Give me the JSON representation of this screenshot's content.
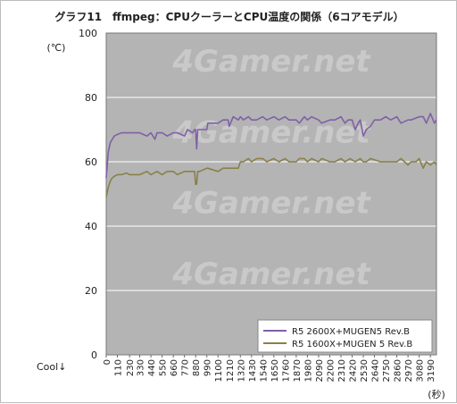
{
  "chart_data": {
    "type": "line",
    "title": "グラフ11　ffmpeg：CPUクーラーとCPU温度の関係（6コアモデル）",
    "ylabel": "(℃)",
    "xlabel": "(秒)",
    "corner_label": "Cool↓",
    "watermark": "4Gamer.net",
    "ylim": [
      0,
      100
    ],
    "yticks": [
      0,
      20,
      40,
      60,
      80,
      100
    ],
    "xlim": [
      0,
      3250
    ],
    "xticks": [
      0,
      110,
      230,
      330,
      440,
      550,
      660,
      770,
      880,
      990,
      1100,
      1210,
      1320,
      1430,
      1540,
      1650,
      1760,
      1870,
      1980,
      2090,
      2200,
      2310,
      2420,
      2530,
      2640,
      2750,
      2860,
      2970,
      3080,
      3190
    ],
    "grid": true,
    "legend_position": "bottom-right",
    "colors": {
      "plot_bg": "#b4b4b4",
      "grid": "#ffffff",
      "series1": "#8060a8",
      "series2": "#8a8048"
    },
    "series": [
      {
        "name": "R5 2600X+MUGEN5 Rev.B",
        "color": "#8060a8",
        "x": [
          0,
          20,
          40,
          60,
          80,
          110,
          150,
          200,
          230,
          330,
          400,
          440,
          480,
          500,
          550,
          600,
          660,
          700,
          770,
          800,
          850,
          870,
          880,
          890,
          900,
          920,
          990,
          1000,
          1100,
          1150,
          1200,
          1210,
          1250,
          1300,
          1320,
          1350,
          1400,
          1430,
          1480,
          1540,
          1580,
          1650,
          1700,
          1760,
          1800,
          1870,
          1900,
          1950,
          1980,
          2020,
          2090,
          2120,
          2200,
          2250,
          2310,
          2350,
          2380,
          2420,
          2450,
          2480,
          2500,
          2530,
          2560,
          2600,
          2640,
          2700,
          2750,
          2800,
          2860,
          2900,
          2970,
          3000,
          3080,
          3120,
          3150,
          3190,
          3230,
          3250
        ],
        "y": [
          55,
          63,
          66,
          67,
          68,
          68.5,
          69,
          69,
          69,
          69,
          68,
          69,
          67,
          69,
          69,
          68,
          69,
          69,
          68,
          70,
          69,
          70,
          70,
          64,
          70,
          70,
          70,
          72,
          72,
          73,
          73,
          71,
          74,
          73,
          74,
          73,
          74,
          73,
          73,
          74,
          73,
          74,
          73,
          74,
          73,
          73,
          72,
          74,
          73,
          74,
          73,
          72,
          73,
          73,
          74,
          72,
          73,
          73,
          70,
          72,
          73,
          68,
          70,
          71,
          73,
          73,
          74,
          73,
          74,
          72,
          73,
          73,
          74,
          74,
          72,
          75,
          72,
          73
        ]
      },
      {
        "name": "R5 1600X+MUGEN 5 Rev.B",
        "color": "#8a8048",
        "x": [
          0,
          20,
          40,
          60,
          80,
          110,
          150,
          200,
          230,
          330,
          400,
          440,
          500,
          550,
          600,
          660,
          700,
          770,
          800,
          850,
          870,
          880,
          890,
          900,
          920,
          990,
          1000,
          1100,
          1150,
          1200,
          1250,
          1300,
          1320,
          1350,
          1400,
          1430,
          1480,
          1540,
          1580,
          1650,
          1700,
          1760,
          1800,
          1870,
          1900,
          1950,
          1980,
          2020,
          2090,
          2120,
          2200,
          2250,
          2310,
          2350,
          2400,
          2450,
          2500,
          2530,
          2560,
          2600,
          2700,
          2800,
          2860,
          2900,
          2970,
          3000,
          3050,
          3080,
          3120,
          3150,
          3190,
          3230,
          3250
        ],
        "y": [
          49,
          52,
          54,
          55,
          55.5,
          56,
          56,
          56.5,
          56,
          56,
          57,
          56,
          57,
          56,
          57,
          57,
          56,
          57,
          57,
          57,
          57,
          53,
          53,
          57,
          57,
          58,
          58,
          57,
          58,
          58,
          58,
          58,
          60,
          60,
          61,
          60,
          61,
          61,
          60,
          61,
          60,
          61,
          60,
          60,
          61,
          61,
          60,
          61,
          60,
          61,
          60,
          60,
          61,
          60,
          61,
          60,
          61,
          60,
          60,
          61,
          60,
          60,
          60,
          61,
          59,
          60,
          60,
          61,
          58,
          60,
          59,
          60,
          59
        ]
      }
    ]
  }
}
